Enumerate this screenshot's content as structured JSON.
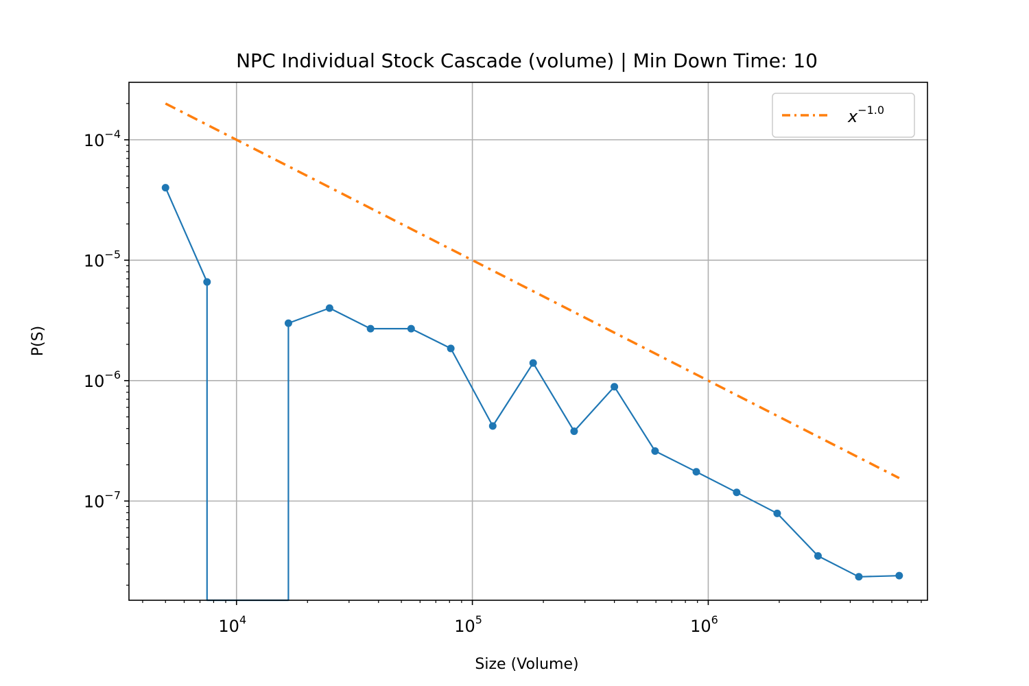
{
  "chart_data": {
    "type": "line",
    "title": "NPC Individual Stock Cascade (volume) | Min Down Time: 10",
    "xlabel": "Size (Volume)",
    "ylabel": "P(S)",
    "xscale": "log",
    "yscale": "log",
    "xlim": [
      3500,
      8500000
    ],
    "ylim": [
      1.5e-08,
      0.0003
    ],
    "grid": true,
    "legend_placement": "top-right",
    "x_ticks": [
      {
        "value": 10000,
        "base": "10",
        "exp": "4"
      },
      {
        "value": 100000,
        "base": "10",
        "exp": "5"
      },
      {
        "value": 1000000,
        "base": "10",
        "exp": "6"
      }
    ],
    "y_ticks": [
      {
        "value": 0.0001,
        "base": "10",
        "exp": "−4"
      },
      {
        "value": 1e-05,
        "base": "10",
        "exp": "−5"
      },
      {
        "value": 1e-06,
        "base": "10",
        "exp": "−6"
      },
      {
        "value": 1e-07,
        "base": "10",
        "exp": "−7"
      }
    ],
    "series": [
      {
        "color": "#1f77b4",
        "style": "solid-with-dots",
        "points": [
          {
            "x": 5000,
            "y": 4e-05
          },
          {
            "x": 7500,
            "y": 6.6e-06
          },
          {
            "x": 7500,
            "y": 0
          },
          {
            "x": 16600,
            "y": 0
          },
          {
            "x": 16600,
            "y": 3e-06
          },
          {
            "x": 24800,
            "y": 4e-06
          },
          {
            "x": 37000,
            "y": 2.7e-06
          },
          {
            "x": 55000,
            "y": 2.7e-06
          },
          {
            "x": 81000,
            "y": 1.85e-06
          },
          {
            "x": 122000,
            "y": 4.2e-07
          },
          {
            "x": 181000,
            "y": 1.4e-06
          },
          {
            "x": 270000,
            "y": 3.8e-07
          },
          {
            "x": 400000,
            "y": 8.9e-07
          },
          {
            "x": 595000,
            "y": 2.6e-07
          },
          {
            "x": 890000,
            "y": 1.75e-07
          },
          {
            "x": 1320000,
            "y": 1.18e-07
          },
          {
            "x": 1960000,
            "y": 7.9e-08
          },
          {
            "x": 2920000,
            "y": 3.5e-08
          },
          {
            "x": 4350000,
            "y": 2.35e-08
          },
          {
            "x": 6450000,
            "y": 2.4e-08
          }
        ]
      },
      {
        "color": "#ff7f0e",
        "style": "dash-dot",
        "legend_base": "x",
        "legend_exp": "−1.0",
        "x": [
          5000,
          6450000
        ],
        "y": [
          0.0002,
          1.55e-07
        ]
      }
    ]
  }
}
